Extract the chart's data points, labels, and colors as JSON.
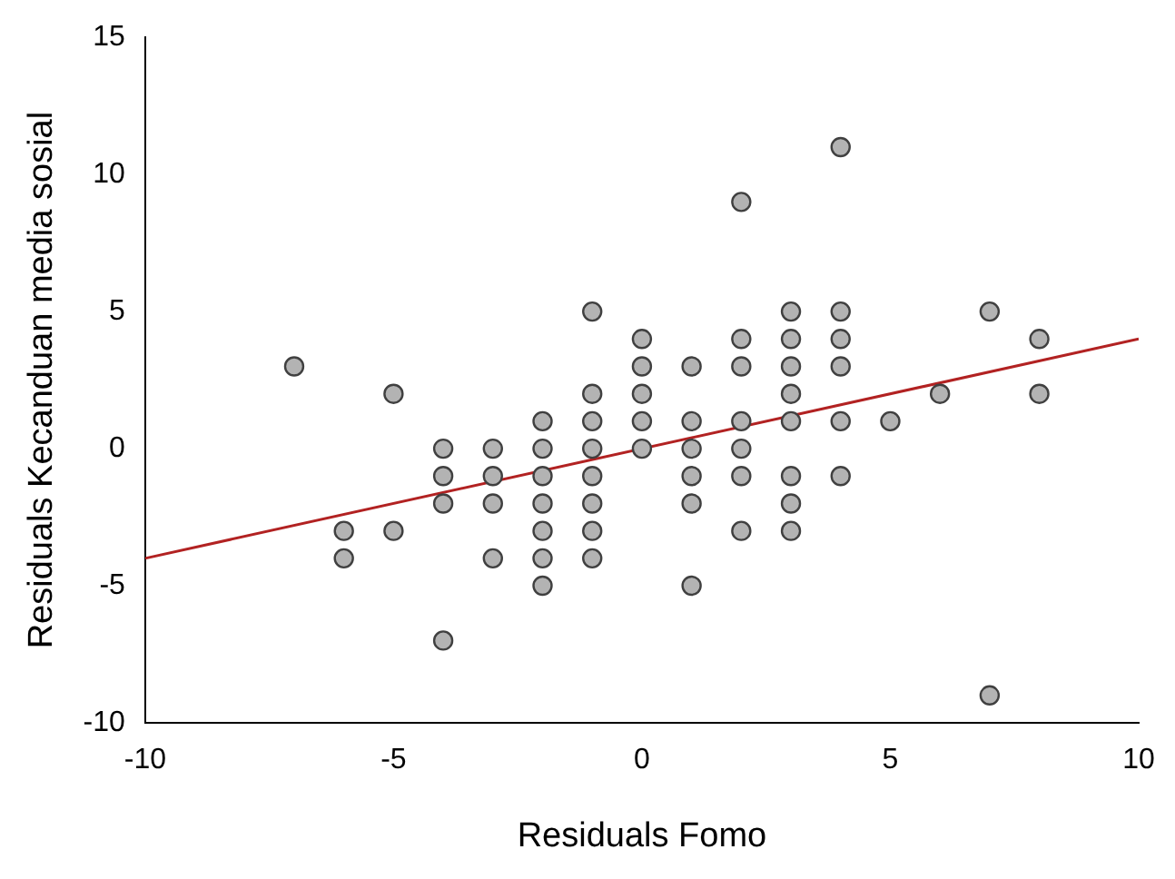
{
  "chart_data": {
    "type": "scatter",
    "xlabel": "Residuals Fomo",
    "ylabel": "Residuals Kecanduan media sosial",
    "xlim": [
      -10,
      10
    ],
    "ylim": [
      -10,
      15
    ],
    "xticks": [
      -10,
      -5,
      0,
      5,
      10
    ],
    "yticks": [
      -10,
      -5,
      0,
      5,
      10,
      15
    ],
    "grid": false,
    "legend": false,
    "marker": "circle",
    "series": [
      {
        "color": "#b3b3b3",
        "x": [
          -7,
          -6,
          -6,
          -5,
          -5,
          -4,
          -4,
          -4,
          -4,
          -3,
          -3,
          -3,
          -3,
          -2,
          -2,
          -2,
          -2,
          -2,
          -2,
          -2,
          -1,
          -1,
          -1,
          -1,
          -1,
          -1,
          -1,
          -1,
          0,
          0,
          0,
          0,
          0,
          1,
          1,
          1,
          1,
          1,
          1,
          2,
          2,
          2,
          2,
          2,
          2,
          2,
          3,
          3,
          3,
          3,
          3,
          3,
          3,
          3,
          4,
          4,
          4,
          4,
          4,
          4,
          5,
          6,
          7,
          7,
          8,
          8
        ],
        "values": [
          3,
          -3,
          -4,
          2,
          -3,
          0,
          -1,
          -2,
          -7,
          0,
          -1,
          -2,
          -4,
          1,
          0,
          -1,
          -2,
          -3,
          -4,
          -5,
          5,
          2,
          1,
          0,
          -1,
          -2,
          -3,
          -4,
          4,
          3,
          2,
          1,
          0,
          3,
          1,
          0,
          -1,
          -2,
          -5,
          9,
          4,
          3,
          1,
          0,
          -1,
          -3,
          5,
          4,
          3,
          2,
          1,
          -1,
          -2,
          -3,
          11,
          5,
          4,
          3,
          1,
          -1,
          1,
          2,
          5,
          -9,
          4,
          2
        ]
      },
      {
        "type": "line",
        "color": "#b22222",
        "x": [
          -10,
          10
        ],
        "values": [
          -4,
          4
        ],
        "marker": "none",
        "line_style": "solid"
      }
    ]
  }
}
